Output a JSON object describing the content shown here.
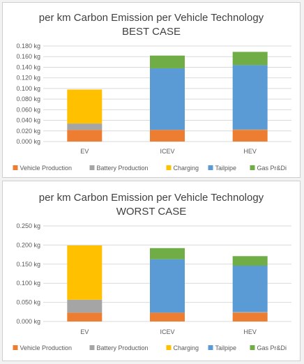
{
  "colors": {
    "vehicle_production": "#ed7d31",
    "battery_production": "#a5a5a5",
    "charging": "#ffc000",
    "tailpipe": "#5b9bd5",
    "gas_prdi": "#70ad47"
  },
  "chart_data": [
    {
      "type": "bar",
      "stacked": true,
      "title": "per km Carbon Emission per Vehicle Technology",
      "subtitle": "BEST CASE",
      "categories": [
        "EV",
        "ICEV",
        "HEV"
      ],
      "ylim": [
        0,
        0.18
      ],
      "yticks": [
        0,
        0.02,
        0.04,
        0.06,
        0.08,
        0.1,
        0.12,
        0.14,
        0.16,
        0.18
      ],
      "ytick_labels": [
        "0.000 kg",
        "0.020 kg",
        "0.040 kg",
        "0.060 kg",
        "0.080 kg",
        "0.100 kg",
        "0.120 kg",
        "0.140 kg",
        "0.160 kg",
        "0.180 kg"
      ],
      "grid": true,
      "legend": "bottom",
      "series": [
        {
          "name": "Vehicle Production",
          "color_key": "vehicle_production",
          "values": [
            0.022,
            0.022,
            0.022
          ]
        },
        {
          "name": "Battery Production",
          "color_key": "battery_production",
          "values": [
            0.012,
            0.0,
            0.001
          ]
        },
        {
          "name": "Charging",
          "color_key": "charging",
          "values": [
            0.064,
            0.0,
            0.0
          ]
        },
        {
          "name": "Tailpipe",
          "color_key": "tailpipe",
          "values": [
            0.0,
            0.116,
            0.121
          ]
        },
        {
          "name": "Gas Pr&Di",
          "color_key": "gas_prdi",
          "values": [
            0.0,
            0.024,
            0.025
          ]
        }
      ]
    },
    {
      "type": "bar",
      "stacked": true,
      "title": "per km Carbon Emission per Vehicle Technology",
      "subtitle": "WORST CASE",
      "categories": [
        "EV",
        "ICEV",
        "HEV"
      ],
      "ylim": [
        0,
        0.25
      ],
      "yticks": [
        0,
        0.05,
        0.1,
        0.15,
        0.2,
        0.25
      ],
      "ytick_labels": [
        "0.000 kg",
        "0.050 kg",
        "0.100 kg",
        "0.150 kg",
        "0.200 kg",
        "0.250 kg"
      ],
      "grid": true,
      "legend": "bottom",
      "series": [
        {
          "name": "Vehicle Production",
          "color_key": "vehicle_production",
          "values": [
            0.023,
            0.023,
            0.023
          ]
        },
        {
          "name": "Battery Production",
          "color_key": "battery_production",
          "values": [
            0.034,
            0.0,
            0.002
          ]
        },
        {
          "name": "Charging",
          "color_key": "charging",
          "values": [
            0.142,
            0.0,
            0.0
          ]
        },
        {
          "name": "Tailpipe",
          "color_key": "tailpipe",
          "values": [
            0.0,
            0.14,
            0.121
          ]
        },
        {
          "name": "Gas Pr&Di",
          "color_key": "gas_prdi",
          "values": [
            0.0,
            0.029,
            0.025
          ]
        }
      ]
    }
  ]
}
